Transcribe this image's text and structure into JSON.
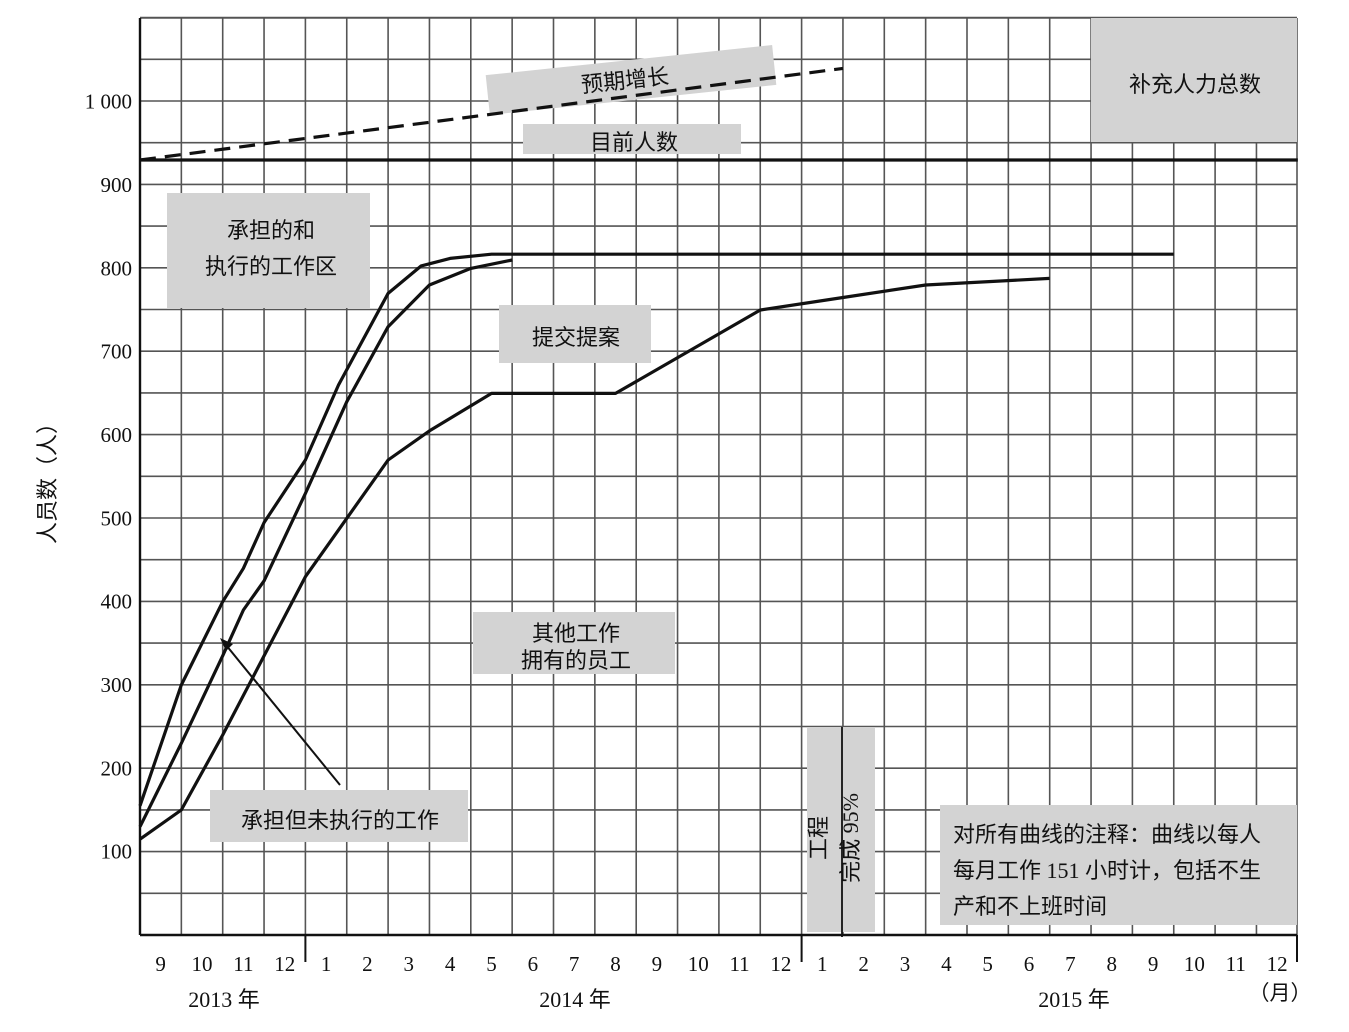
{
  "chart_data": {
    "type": "line",
    "ylabel": "人员数（人）",
    "ylim": [
      0,
      1100
    ],
    "y_ticks": [
      "1 000",
      "900",
      "800",
      "700",
      "600",
      "500",
      "400",
      "300",
      "200",
      "100"
    ],
    "y_tick_values": [
      1000,
      900,
      800,
      700,
      600,
      500,
      400,
      300,
      200,
      100
    ],
    "month_ticks": [
      "9",
      "10",
      "11",
      "12",
      "1",
      "2",
      "3",
      "4",
      "5",
      "6",
      "7",
      "8",
      "9",
      "10",
      "11",
      "12",
      "1",
      "2",
      "3",
      "4",
      "5",
      "6",
      "7",
      "8",
      "9",
      "10",
      "11",
      "12"
    ],
    "years": [
      "2013 年",
      "2014 年",
      "2015 年"
    ],
    "unit_label": "（月）",
    "x_range": [
      0,
      28
    ],
    "series": [
      {
        "name": "预期增长",
        "style": "dashed",
        "points": [
          [
            0,
            930
          ],
          [
            17,
            1040
          ]
        ]
      },
      {
        "name": "目前人数",
        "style": "solid",
        "points": [
          [
            0,
            930
          ],
          [
            28,
            930
          ]
        ]
      },
      {
        "name": "承担的和执行的工作区",
        "style": "solid",
        "points": [
          [
            0,
            155
          ],
          [
            1,
            300
          ],
          [
            2,
            400
          ],
          [
            2.5,
            440
          ],
          [
            3,
            495
          ],
          [
            4,
            570
          ],
          [
            4.8,
            660
          ],
          [
            6,
            770
          ],
          [
            6.8,
            803
          ],
          [
            7.5,
            812
          ],
          [
            8.5,
            817
          ],
          [
            25,
            817
          ]
        ]
      },
      {
        "name": "提交提案",
        "style": "solid",
        "points": [
          [
            0,
            130
          ],
          [
            1,
            230
          ],
          [
            2,
            335
          ],
          [
            2.5,
            390
          ],
          [
            3,
            425
          ],
          [
            4,
            530
          ],
          [
            5,
            640
          ],
          [
            6,
            730
          ],
          [
            7,
            780
          ],
          [
            8,
            800
          ],
          [
            9,
            810
          ]
        ]
      },
      {
        "name": "其他工作拥有的员工",
        "style": "solid",
        "points": [
          [
            0,
            115
          ],
          [
            1,
            150
          ],
          [
            2,
            240
          ],
          [
            3,
            335
          ],
          [
            4,
            430
          ],
          [
            5,
            500
          ],
          [
            6,
            570
          ],
          [
            7,
            605
          ],
          [
            8.5,
            650
          ],
          [
            11.5,
            650
          ],
          [
            15,
            750
          ],
          [
            17,
            765
          ],
          [
            19,
            780
          ],
          [
            22,
            788
          ]
        ]
      }
    ],
    "annotations": {
      "expected_growth": "预期增长",
      "current_headcount": "目前人数",
      "total_supplement": "补充人力总数",
      "committed_line1": "承担的和",
      "committed_line2": "执行的工作区",
      "proposal": "提交提案",
      "other_line1": "其他工作",
      "other_line2": "拥有的员工",
      "committed_not_executed": "承担但未执行的工作",
      "eng_col1": "工程",
      "eng_col2": "完成 95%",
      "note_line1": "对所有曲线的注释：曲线以每人",
      "note_line2": "每月工作 151 小时计，包括不生",
      "note_line3": "产和不上班时间"
    }
  }
}
